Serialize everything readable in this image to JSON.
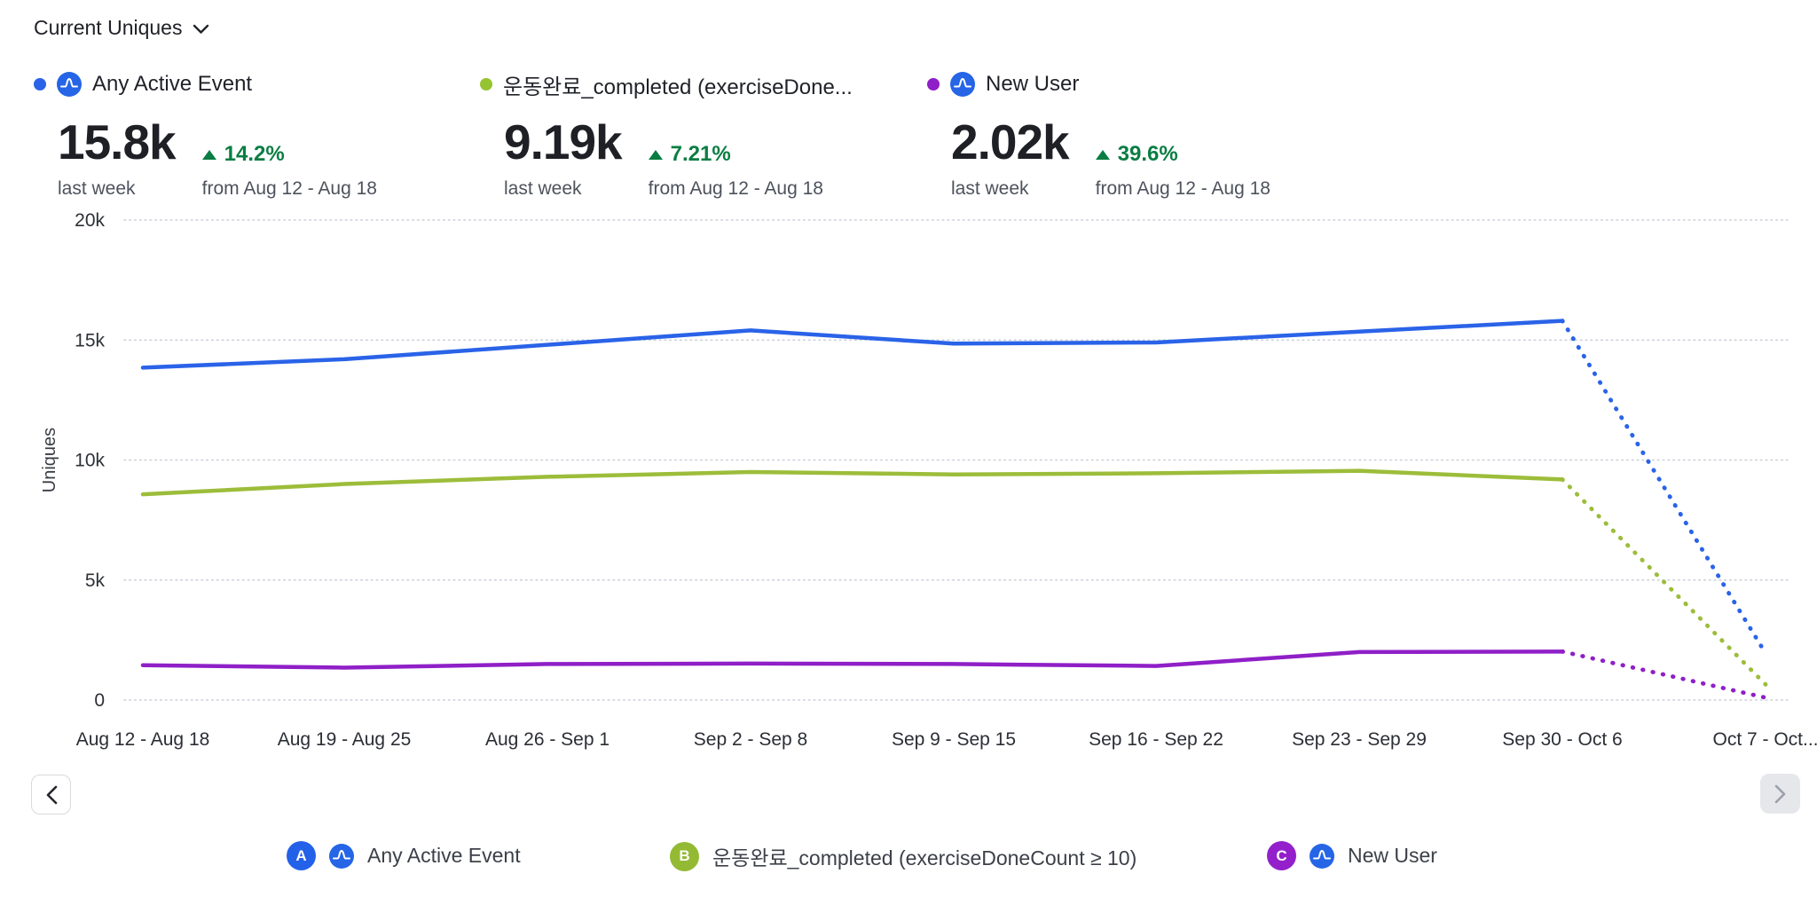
{
  "header": {
    "metric_dropdown_label": "Current Uniques"
  },
  "colors": {
    "series_blue": "#2a63e8",
    "series_green": "#9cbd3a",
    "series_purple": "#8f1fc7",
    "badge_blue": "#2461e9",
    "badge_green": "#94ba33",
    "badge_purple": "#9320cb",
    "positive_green": "#0a7d43",
    "amplitude_icon_blue": "#2565e6"
  },
  "cards": [
    {
      "label": "Any Active Event",
      "value": "15.8k",
      "value_caption": "last week",
      "change": "14.2%",
      "change_direction": "up",
      "change_caption": "from Aug 12 - Aug 18",
      "dot_color": "#2a63e8"
    },
    {
      "label": "운동완료_completed (exerciseDone...",
      "value": "9.19k",
      "value_caption": "last week",
      "change": "7.21%",
      "change_direction": "up",
      "change_caption": "from Aug 12 - Aug 18",
      "dot_color": "#95c331"
    },
    {
      "label": "New User",
      "value": "2.02k",
      "value_caption": "last week",
      "change": "39.6%",
      "change_direction": "up",
      "change_caption": "from Aug 12 - Aug 18",
      "dot_color": "#8f1fc7"
    }
  ],
  "chart_data": {
    "type": "line",
    "title": "Current Uniques",
    "xlabel": "",
    "ylabel": "Uniques",
    "ylim": [
      0,
      20000
    ],
    "grid": "horizontal-dotted",
    "legend_position": "bottom",
    "y_ticks": [
      {
        "value": 0,
        "label": "0"
      },
      {
        "value": 5000,
        "label": "5k"
      },
      {
        "value": 10000,
        "label": "10k"
      },
      {
        "value": 15000,
        "label": "15k"
      },
      {
        "value": 20000,
        "label": "20k"
      }
    ],
    "categories": [
      "Aug 12 - Aug 18",
      "Aug 19 - Aug 25",
      "Aug 26 - Sep 1",
      "Sep 2 - Sep 8",
      "Sep 9 - Sep 15",
      "Sep 16 - Sep 22",
      "Sep 23 - Sep 29",
      "Sep 30 - Oct 6",
      "Oct 7 - Oct..."
    ],
    "series": [
      {
        "name": "Any Active Event",
        "color": "#2a63e8",
        "values": [
          13850,
          14200,
          14800,
          15400,
          14850,
          14900,
          15350,
          15800,
          1950
        ],
        "last_segment_style": "dotted"
      },
      {
        "name": "운동완료_completed (exerciseDoneCount ≥ 10)",
        "color": "#9cbd3a",
        "values": [
          8570,
          9000,
          9300,
          9500,
          9400,
          9450,
          9550,
          9190,
          650
        ],
        "last_segment_style": "dotted"
      },
      {
        "name": "New User",
        "color": "#8f1fc7",
        "values": [
          1450,
          1350,
          1500,
          1520,
          1500,
          1420,
          2000,
          2020,
          100
        ],
        "last_segment_style": "dotted"
      }
    ]
  },
  "legend": [
    {
      "badge": "A",
      "badge_color": "#2461e9",
      "label": "Any Active Event",
      "has_amplitude_icon": true
    },
    {
      "badge": "B",
      "badge_color": "#94ba33",
      "label": "운동완료_completed (exerciseDoneCount ≥ 10)",
      "has_amplitude_icon": false
    },
    {
      "badge": "C",
      "badge_color": "#9320cb",
      "label": "New User",
      "has_amplitude_icon": true
    }
  ],
  "pagination": {
    "prev_enabled": true,
    "next_enabled": false
  }
}
